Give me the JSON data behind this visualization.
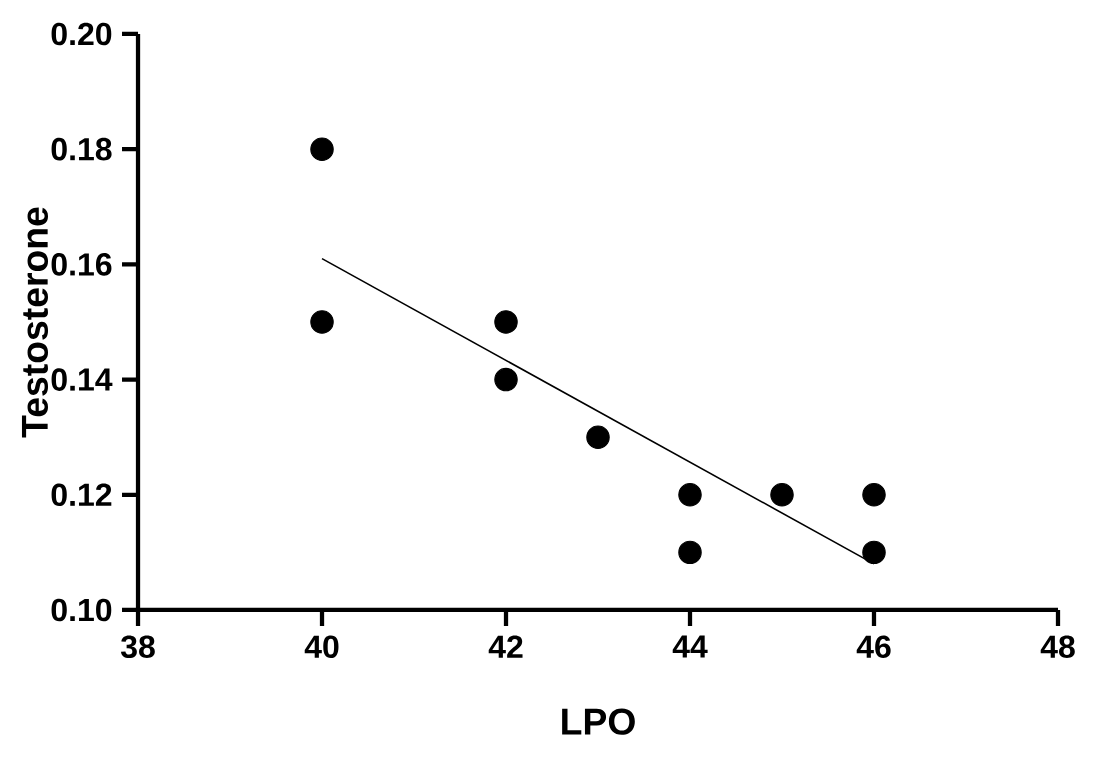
{
  "chart_data": {
    "type": "scatter",
    "xlabel": "LPO",
    "ylabel": "Testosterone",
    "xlim": [
      38,
      48
    ],
    "ylim": [
      0.1,
      0.2
    ],
    "xticks": [
      38,
      40,
      42,
      44,
      46,
      48
    ],
    "yticks": [
      {
        "value": 0.1,
        "label": "0.10"
      },
      {
        "value": 0.12,
        "label": "0.12"
      },
      {
        "value": 0.14,
        "label": "0.14"
      },
      {
        "value": 0.16,
        "label": "0.16"
      },
      {
        "value": 0.18,
        "label": "0.18"
      },
      {
        "value": 0.2,
        "label": "0.20"
      }
    ],
    "series": [
      {
        "color": "#000000",
        "marker": "circle",
        "x": [
          40,
          40,
          42,
          42,
          43,
          44,
          44,
          45,
          46,
          46
        ],
        "values": [
          0.18,
          0.15,
          0.15,
          0.14,
          0.13,
          0.12,
          0.11,
          0.12,
          0.12,
          0.11
        ]
      },
      {
        "type": "line",
        "color": "#000000",
        "x": [
          40,
          46
        ],
        "values": [
          0.161,
          0.108
        ]
      }
    ]
  }
}
